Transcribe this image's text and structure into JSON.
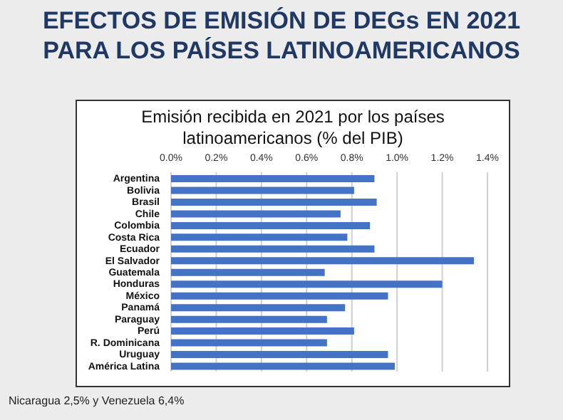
{
  "chart_data": {
    "type": "bar",
    "orientation": "horizontal",
    "title": "EFECTOS DE EMISIÓN DE DEGs EN 2021\nPARA LOS PAÍSES LATINOAMERICANOS",
    "subtitle": "Emisión recibida en 2021 por los países\nlatinoamericanos (% del PIB)",
    "categories": [
      "Argentina",
      "Bolivia",
      "Brasil",
      "Chile",
      "Colombia",
      "Costa Rica",
      "Ecuador",
      "El Salvador",
      "Guatemala",
      "Honduras",
      "México",
      "Panamá",
      "Paraguay",
      "Perú",
      "R. Dominicana",
      "Uruguay",
      "América Latina"
    ],
    "values": [
      0.9,
      0.81,
      0.91,
      0.75,
      0.88,
      0.78,
      0.9,
      1.34,
      0.68,
      1.2,
      0.96,
      0.77,
      0.69,
      0.81,
      0.69,
      0.96,
      0.99
    ],
    "color": "#4472c4",
    "xlim": [
      0,
      1.4
    ],
    "xticks": [
      {
        "value": 0,
        "label": "0.0%"
      },
      {
        "value": 0.2,
        "label": "0.2%"
      },
      {
        "value": 0.4,
        "label": "0.4%"
      },
      {
        "value": 0.6,
        "label": "0.6%"
      },
      {
        "value": 0.8,
        "label": "0.8%"
      },
      {
        "value": 1,
        "label": "1.0%"
      },
      {
        "value": 1.2,
        "label": "1.2%"
      },
      {
        "value": 1.4,
        "label": "1.4%"
      }
    ],
    "grid": "x",
    "annotations": [
      "Nicaragua 2,5% y Venezuela 6,4%"
    ]
  }
}
